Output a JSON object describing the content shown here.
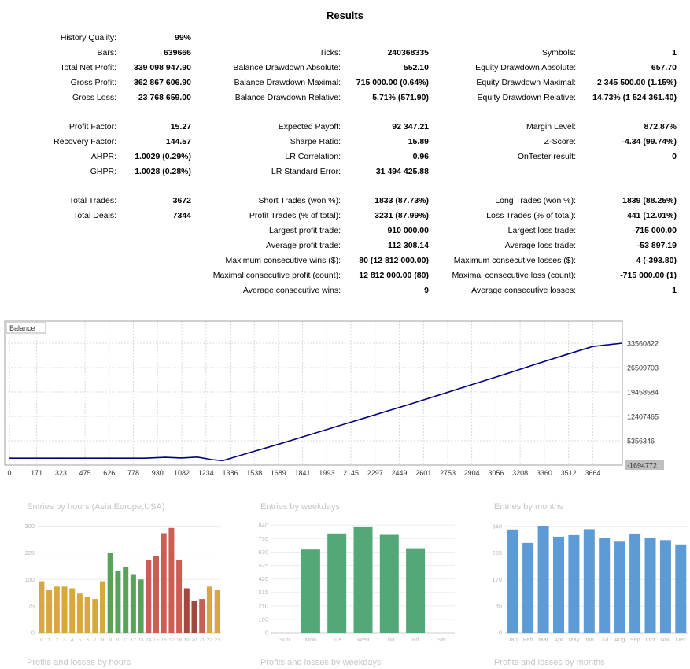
{
  "title": "Results",
  "stats": {
    "sections": [
      {
        "rows": [
          [
            {
              "label": "History Quality:",
              "value": "99%"
            },
            null,
            null
          ],
          [
            {
              "label": "Bars:",
              "value": "639666"
            },
            {
              "label": "Ticks:",
              "value": "240368335"
            },
            {
              "label": "Symbols:",
              "value": "1"
            }
          ],
          [
            {
              "label": "Total Net Profit:",
              "value": "339 098 947.90"
            },
            {
              "label": "Balance Drawdown Absolute:",
              "value": "552.10"
            },
            {
              "label": "Equity Drawdown Absolute:",
              "value": "657.70"
            }
          ],
          [
            {
              "label": "Gross Profit:",
              "value": "362 867 606.90"
            },
            {
              "label": "Balance Drawdown Maximal:",
              "value": "715 000.00 (0.64%)"
            },
            {
              "label": "Equity Drawdown Maximal:",
              "value": "2 345 500.00 (1.15%)"
            }
          ],
          [
            {
              "label": "Gross Loss:",
              "value": "-23 768 659.00"
            },
            {
              "label": "Balance Drawdown Relative:",
              "value": "5.71% (571.90)"
            },
            {
              "label": "Equity Drawdown Relative:",
              "value": "14.73% (1 524 361.40)"
            }
          ]
        ]
      },
      {
        "rows": [
          [
            {
              "label": "Profit Factor:",
              "value": "15.27"
            },
            {
              "label": "Expected Payoff:",
              "value": "92 347.21"
            },
            {
              "label": "Margin Level:",
              "value": "872.87%"
            }
          ],
          [
            {
              "label": "Recovery Factor:",
              "value": "144.57"
            },
            {
              "label": "Sharpe Ratio:",
              "value": "15.89"
            },
            {
              "label": "Z-Score:",
              "value": "-4.34 (99.74%)"
            }
          ],
          [
            {
              "label": "AHPR:",
              "value": "1.0029 (0.29%)"
            },
            {
              "label": "LR Correlation:",
              "value": "0.96"
            },
            {
              "label": "OnTester result:",
              "value": "0"
            }
          ],
          [
            {
              "label": "GHPR:",
              "value": "1.0028 (0.28%)"
            },
            {
              "label": "LR Standard Error:",
              "value": "31 494 425.88"
            },
            null
          ]
        ]
      },
      {
        "rows": [
          [
            {
              "label": "Total Trades:",
              "value": "3672"
            },
            {
              "label": "Short Trades (won %):",
              "value": "1833 (87.73%)"
            },
            {
              "label": "Long Trades (won %):",
              "value": "1839 (88.25%)"
            }
          ],
          [
            {
              "label": "Total Deals:",
              "value": "7344"
            },
            {
              "label": "Profit Trades (% of total):",
              "value": "3231 (87.99%)"
            },
            {
              "label": "Loss Trades (% of total):",
              "value": "441 (12.01%)"
            }
          ],
          [
            null,
            {
              "label": "Largest profit trade:",
              "value": "910 000.00"
            },
            {
              "label": "Largest loss trade:",
              "value": "-715 000.00"
            }
          ],
          [
            null,
            {
              "label": "Average profit trade:",
              "value": "112 308.14"
            },
            {
              "label": "Average loss trade:",
              "value": "-53 897.19"
            }
          ],
          [
            null,
            {
              "label": "Maximum consecutive wins ($):",
              "value": "80 (12 812 000.00)"
            },
            {
              "label": "Maximum consecutive losses ($):",
              "value": "4 (-393.80)"
            }
          ],
          [
            null,
            {
              "label": "Maximal consecutive profit (count):",
              "value": "12 812 000.00 (80)"
            },
            {
              "label": "Maximal consecutive loss (count):",
              "value": "-715 000.00 (1)"
            }
          ],
          [
            null,
            {
              "label": "Average consecutive wins:",
              "value": "9"
            },
            {
              "label": "Average consecutive losses:",
              "value": "1"
            }
          ]
        ]
      }
    ]
  },
  "chart_data": [
    {
      "id": "balance",
      "type": "line",
      "title": "Balance",
      "line_color": "#000080",
      "x_ticks": [
        0,
        171,
        323,
        475,
        626,
        778,
        930,
        1082,
        1234,
        1386,
        1538,
        1689,
        1841,
        1993,
        2145,
        2297,
        2449,
        2601,
        2753,
        2904,
        3056,
        3208,
        3360,
        3512,
        3664
      ],
      "y_ticks": [
        33560822,
        26509703,
        19458584,
        12407465,
        5356346,
        -1694772
      ],
      "highlight_tick": -1694772,
      "x_range": [
        -30,
        3850
      ],
      "y_range": [
        -1694772,
        39933228
      ],
      "points": [
        [
          0,
          300000
        ],
        [
          300,
          300000
        ],
        [
          600,
          300000
        ],
        [
          850,
          300000
        ],
        [
          980,
          550000
        ],
        [
          1080,
          380000
        ],
        [
          1180,
          620000
        ],
        [
          1270,
          -100000
        ],
        [
          1340,
          -400000
        ],
        [
          1386,
          250000
        ],
        [
          1500,
          1800000
        ],
        [
          1700,
          4500000
        ],
        [
          1900,
          7300000
        ],
        [
          2100,
          10100000
        ],
        [
          2300,
          12900000
        ],
        [
          2500,
          15700000
        ],
        [
          2700,
          18600000
        ],
        [
          2900,
          21500000
        ],
        [
          3100,
          24400000
        ],
        [
          3300,
          27400000
        ],
        [
          3500,
          30300000
        ],
        [
          3664,
          32600000
        ],
        [
          3850,
          33560822
        ]
      ]
    },
    {
      "id": "entries_by_hours",
      "type": "bar",
      "title": "Entries by hours (Asia,Europe,USA)",
      "footer": "Profits and losses by hours",
      "categories": [
        "0",
        "1",
        "2",
        "3",
        "4",
        "5",
        "6",
        "7",
        "8",
        "9",
        "10",
        "11",
        "12",
        "13",
        "14",
        "15",
        "16",
        "17",
        "18",
        "19",
        "20",
        "21",
        "22",
        "23"
      ],
      "values": [
        145,
        120,
        130,
        130,
        125,
        110,
        100,
        95,
        145,
        225,
        175,
        185,
        165,
        150,
        205,
        215,
        280,
        295,
        205,
        125,
        90,
        95,
        130,
        120
      ],
      "colors": [
        "#d8a73e",
        "#d8a73e",
        "#d8a73e",
        "#d8a73e",
        "#d8a73e",
        "#d8a73e",
        "#d8a73e",
        "#d8a73e",
        "#d8a73e",
        "#59a259",
        "#59a259",
        "#59a259",
        "#59a259",
        "#59a259",
        "#c95f54",
        "#c95f54",
        "#c95f54",
        "#c95f54",
        "#c95f54",
        "#a34840",
        "#a34840",
        "#c95f54",
        "#d8a73e",
        "#d8a73e"
      ],
      "y_ticks": [
        0,
        75,
        150,
        225,
        300
      ],
      "y_max": 310,
      "label_size": 6.3
    },
    {
      "id": "entries_by_weekdays",
      "type": "bar",
      "title": "Entries by weekdays",
      "footer": "Profits and losses by weekdays",
      "categories": [
        "Sun",
        "Mon",
        "Tue",
        "Wed",
        "Thu",
        "Fri",
        "Sat"
      ],
      "values": [
        0,
        650,
        775,
        830,
        765,
        660,
        0
      ],
      "color": "#53a878",
      "y_ticks": [
        0,
        105,
        210,
        315,
        420,
        525,
        630,
        735,
        840
      ],
      "y_max": 860,
      "label_size": 7.5
    },
    {
      "id": "entries_by_months",
      "type": "bar",
      "title": "Entries by months",
      "footer": "Profits and losses by months",
      "categories": [
        "Jan",
        "Feb",
        "Mar",
        "Apr",
        "May",
        "Jun",
        "Jul",
        "Aug",
        "Sep",
        "Oct",
        "Nov",
        "Dec"
      ],
      "values": [
        330,
        287,
        342,
        307,
        312,
        331,
        302,
        291,
        317,
        303,
        296,
        282
      ],
      "color": "#5c9bd5",
      "y_ticks": [
        0,
        85,
        170,
        255,
        340
      ],
      "y_max": 352,
      "label_size": 7.5
    }
  ]
}
